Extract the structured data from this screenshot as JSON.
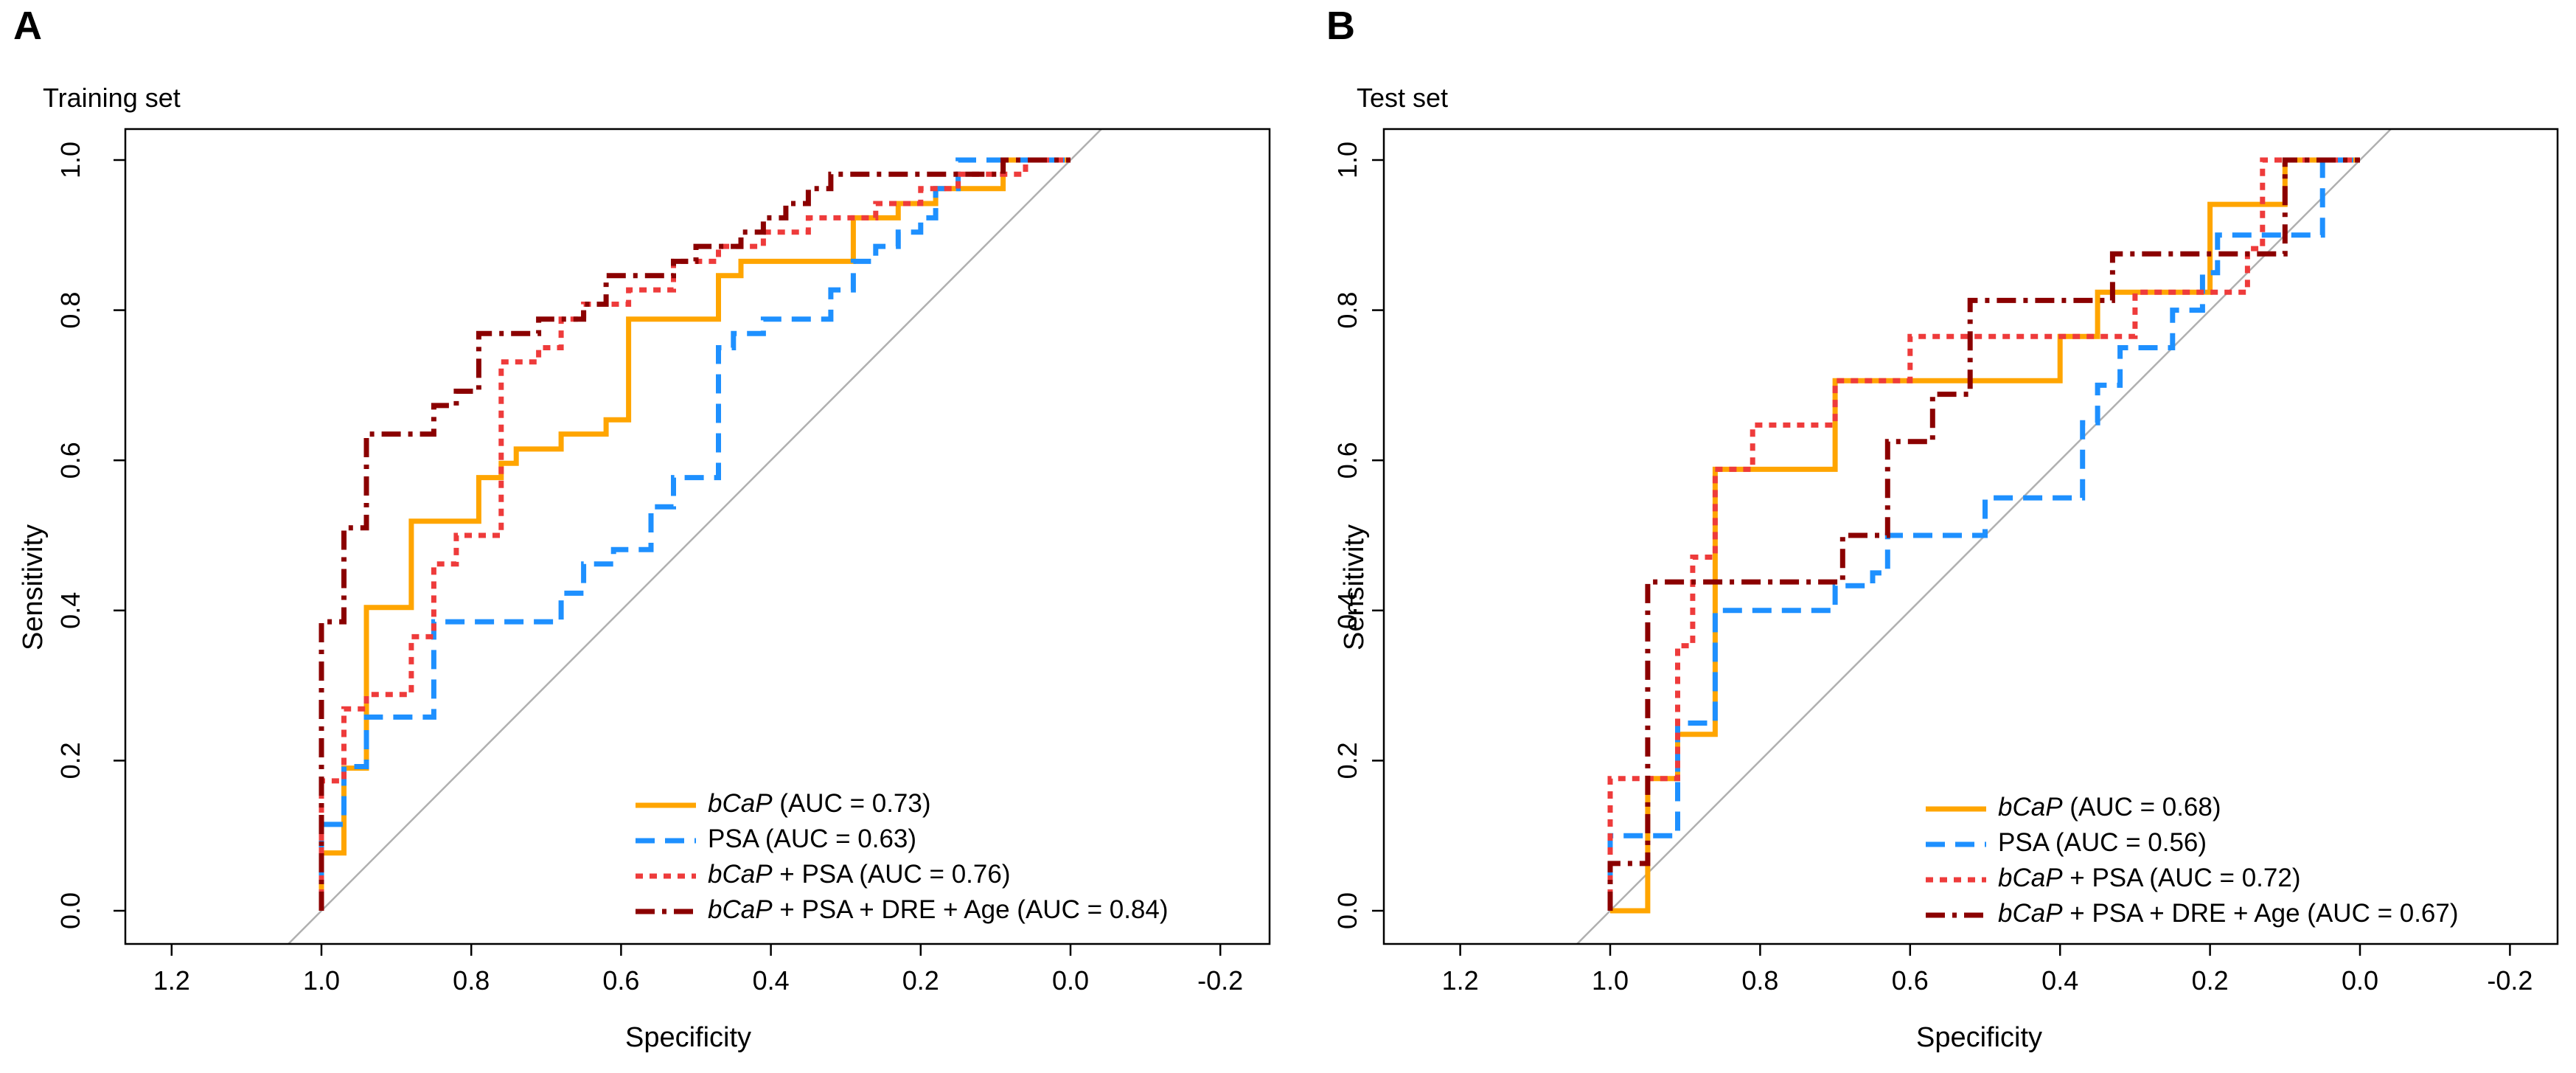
{
  "chart_data": [
    {
      "panel_letter": "A",
      "title": "Training set",
      "type": "line",
      "xlabel": "Specificity",
      "ylabel": "Sensitivity",
      "xlim": [
        1.25,
        -0.25
      ],
      "ylim": [
        0.0,
        1.0
      ],
      "x_ticks": [
        "1.2",
        "1.0",
        "0.8",
        "0.6",
        "0.4",
        "0.2",
        "0.0",
        "-0.2"
      ],
      "y_ticks": [
        "0.0",
        "0.2",
        "0.4",
        "0.6",
        "0.8",
        "1.0"
      ],
      "reference_line": "diagonal",
      "legend_position": "bottom-right",
      "series": [
        {
          "name": "bCaP",
          "legend_italic": "bCaP",
          "legend_rest": " (AUC = 0.73)",
          "auc": 0.73,
          "color": "#FFA500",
          "dash": "solid",
          "points": [
            [
              1.0,
              0.0
            ],
            [
              1.0,
              0.077
            ],
            [
              0.97,
              0.077
            ],
            [
              0.97,
              0.19
            ],
            [
              0.94,
              0.19
            ],
            [
              0.94,
              0.404
            ],
            [
              0.88,
              0.404
            ],
            [
              0.88,
              0.519
            ],
            [
              0.79,
              0.519
            ],
            [
              0.79,
              0.577
            ],
            [
              0.76,
              0.577
            ],
            [
              0.76,
              0.596
            ],
            [
              0.74,
              0.596
            ],
            [
              0.74,
              0.615
            ],
            [
              0.68,
              0.615
            ],
            [
              0.68,
              0.635
            ],
            [
              0.62,
              0.635
            ],
            [
              0.62,
              0.654
            ],
            [
              0.59,
              0.654
            ],
            [
              0.59,
              0.788
            ],
            [
              0.47,
              0.788
            ],
            [
              0.47,
              0.846
            ],
            [
              0.44,
              0.846
            ],
            [
              0.44,
              0.865
            ],
            [
              0.29,
              0.865
            ],
            [
              0.29,
              0.923
            ],
            [
              0.26,
              0.923
            ],
            [
              0.23,
              0.923
            ],
            [
              0.23,
              0.942
            ],
            [
              0.18,
              0.942
            ],
            [
              0.18,
              0.962
            ],
            [
              0.09,
              0.962
            ],
            [
              0.09,
              1.0
            ],
            [
              0.0,
              1.0
            ]
          ]
        },
        {
          "name": "PSA",
          "legend_italic": "",
          "legend_rest": "PSA (AUC = 0.63)",
          "auc": 0.63,
          "color": "#1E90FF",
          "dash": "dashed",
          "points": [
            [
              1.0,
              0.0
            ],
            [
              1.0,
              0.115
            ],
            [
              0.97,
              0.115
            ],
            [
              0.97,
              0.192
            ],
            [
              0.94,
              0.192
            ],
            [
              0.94,
              0.258
            ],
            [
              0.85,
              0.258
            ],
            [
              0.85,
              0.385
            ],
            [
              0.68,
              0.385
            ],
            [
              0.68,
              0.423
            ],
            [
              0.65,
              0.423
            ],
            [
              0.65,
              0.462
            ],
            [
              0.61,
              0.462
            ],
            [
              0.61,
              0.481
            ],
            [
              0.56,
              0.481
            ],
            [
              0.56,
              0.538
            ],
            [
              0.53,
              0.538
            ],
            [
              0.53,
              0.577
            ],
            [
              0.47,
              0.577
            ],
            [
              0.47,
              0.75
            ],
            [
              0.45,
              0.75
            ],
            [
              0.45,
              0.769
            ],
            [
              0.41,
              0.769
            ],
            [
              0.41,
              0.788
            ],
            [
              0.35,
              0.788
            ],
            [
              0.32,
              0.788
            ],
            [
              0.32,
              0.827
            ],
            [
              0.29,
              0.827
            ],
            [
              0.29,
              0.865
            ],
            [
              0.26,
              0.865
            ],
            [
              0.26,
              0.885
            ],
            [
              0.23,
              0.885
            ],
            [
              0.23,
              0.904
            ],
            [
              0.2,
              0.904
            ],
            [
              0.2,
              0.923
            ],
            [
              0.18,
              0.923
            ],
            [
              0.18,
              0.962
            ],
            [
              0.15,
              0.962
            ],
            [
              0.15,
              1.0
            ],
            [
              0.0,
              1.0
            ]
          ]
        },
        {
          "name": "bCaP + PSA",
          "legend_italic": "bCaP",
          "legend_rest": " + PSA (AUC = 0.76)",
          "auc": 0.76,
          "color": "#EE3B3B",
          "dash": "dotted",
          "points": [
            [
              1.0,
              0.0
            ],
            [
              1.0,
              0.173
            ],
            [
              0.97,
              0.173
            ],
            [
              0.97,
              0.269
            ],
            [
              0.94,
              0.269
            ],
            [
              0.94,
              0.288
            ],
            [
              0.88,
              0.288
            ],
            [
              0.88,
              0.365
            ],
            [
              0.85,
              0.365
            ],
            [
              0.85,
              0.462
            ],
            [
              0.82,
              0.462
            ],
            [
              0.82,
              0.5
            ],
            [
              0.76,
              0.5
            ],
            [
              0.76,
              0.731
            ],
            [
              0.71,
              0.731
            ],
            [
              0.71,
              0.75
            ],
            [
              0.68,
              0.75
            ],
            [
              0.68,
              0.788
            ],
            [
              0.65,
              0.788
            ],
            [
              0.65,
              0.808
            ],
            [
              0.59,
              0.808
            ],
            [
              0.59,
              0.827
            ],
            [
              0.53,
              0.827
            ],
            [
              0.53,
              0.865
            ],
            [
              0.47,
              0.865
            ],
            [
              0.47,
              0.885
            ],
            [
              0.41,
              0.885
            ],
            [
              0.41,
              0.904
            ],
            [
              0.35,
              0.904
            ],
            [
              0.35,
              0.923
            ],
            [
              0.26,
              0.923
            ],
            [
              0.26,
              0.942
            ],
            [
              0.2,
              0.942
            ],
            [
              0.2,
              0.962
            ],
            [
              0.15,
              0.962
            ],
            [
              0.15,
              0.981
            ],
            [
              0.06,
              0.981
            ],
            [
              0.06,
              1.0
            ],
            [
              0.0,
              1.0
            ]
          ]
        },
        {
          "name": "bCaP + PSA + DRE + Age",
          "legend_italic": "bCaP",
          "legend_rest": " + PSA + DRE + Age (AUC = 0.84)",
          "auc": 0.84,
          "color": "#8B0000",
          "dash": "dashdot",
          "points": [
            [
              1.0,
              0.0
            ],
            [
              1.0,
              0.385
            ],
            [
              0.97,
              0.385
            ],
            [
              0.97,
              0.51
            ],
            [
              0.94,
              0.51
            ],
            [
              0.94,
              0.635
            ],
            [
              0.85,
              0.635
            ],
            [
              0.85,
              0.673
            ],
            [
              0.82,
              0.673
            ],
            [
              0.82,
              0.692
            ],
            [
              0.79,
              0.692
            ],
            [
              0.79,
              0.769
            ],
            [
              0.71,
              0.769
            ],
            [
              0.71,
              0.788
            ],
            [
              0.65,
              0.788
            ],
            [
              0.65,
              0.808
            ],
            [
              0.62,
              0.808
            ],
            [
              0.62,
              0.846
            ],
            [
              0.53,
              0.846
            ],
            [
              0.53,
              0.865
            ],
            [
              0.5,
              0.865
            ],
            [
              0.5,
              0.885
            ],
            [
              0.44,
              0.885
            ],
            [
              0.44,
              0.904
            ],
            [
              0.41,
              0.904
            ],
            [
              0.41,
              0.923
            ],
            [
              0.38,
              0.923
            ],
            [
              0.38,
              0.942
            ],
            [
              0.35,
              0.942
            ],
            [
              0.35,
              0.962
            ],
            [
              0.32,
              0.962
            ],
            [
              0.32,
              0.981
            ],
            [
              0.09,
              0.981
            ],
            [
              0.09,
              1.0
            ],
            [
              0.0,
              1.0
            ]
          ]
        }
      ]
    },
    {
      "panel_letter": "B",
      "title": "Test set",
      "type": "line",
      "xlabel": "Specificity",
      "ylabel": "Sensitivity",
      "xlim": [
        1.25,
        -0.25
      ],
      "ylim": [
        0.0,
        1.0
      ],
      "x_ticks": [
        "1.2",
        "1.0",
        "0.8",
        "0.6",
        "0.4",
        "0.2",
        "0.0",
        "-0.2"
      ],
      "y_ticks": [
        "0.0",
        "0.2",
        "0.4",
        "0.6",
        "0.8",
        "1.0"
      ],
      "reference_line": "diagonal",
      "legend_position": "bottom-right",
      "series": [
        {
          "name": "bCaP",
          "legend_italic": "bCaP",
          "legend_rest": " (AUC = 0.68)",
          "auc": 0.68,
          "color": "#FFA500",
          "dash": "solid",
          "points": [
            [
              1.0,
              0.0
            ],
            [
              0.95,
              0.0
            ],
            [
              0.95,
              0.176
            ],
            [
              0.91,
              0.176
            ],
            [
              0.91,
              0.235
            ],
            [
              0.86,
              0.235
            ],
            [
              0.86,
              0.588
            ],
            [
              0.7,
              0.588
            ],
            [
              0.7,
              0.706
            ],
            [
              0.4,
              0.706
            ],
            [
              0.4,
              0.765
            ],
            [
              0.35,
              0.765
            ],
            [
              0.35,
              0.824
            ],
            [
              0.2,
              0.824
            ],
            [
              0.2,
              0.941
            ],
            [
              0.1,
              0.941
            ],
            [
              0.1,
              1.0
            ],
            [
              0.0,
              1.0
            ]
          ]
        },
        {
          "name": "PSA",
          "legend_italic": "",
          "legend_rest": "PSA (AUC = 0.56)",
          "auc": 0.56,
          "color": "#1E90FF",
          "dash": "dashed",
          "points": [
            [
              1.0,
              0.0
            ],
            [
              1.0,
              0.1
            ],
            [
              0.91,
              0.1
            ],
            [
              0.91,
              0.25
            ],
            [
              0.86,
              0.25
            ],
            [
              0.86,
              0.4
            ],
            [
              0.7,
              0.4
            ],
            [
              0.7,
              0.433
            ],
            [
              0.65,
              0.433
            ],
            [
              0.65,
              0.45
            ],
            [
              0.63,
              0.45
            ],
            [
              0.63,
              0.5
            ],
            [
              0.5,
              0.5
            ],
            [
              0.5,
              0.55
            ],
            [
              0.37,
              0.55
            ],
            [
              0.37,
              0.65
            ],
            [
              0.35,
              0.65
            ],
            [
              0.35,
              0.7
            ],
            [
              0.32,
              0.7
            ],
            [
              0.32,
              0.75
            ],
            [
              0.25,
              0.75
            ],
            [
              0.25,
              0.8
            ],
            [
              0.21,
              0.8
            ],
            [
              0.21,
              0.85
            ],
            [
              0.19,
              0.85
            ],
            [
              0.19,
              0.9
            ],
            [
              0.05,
              0.9
            ],
            [
              0.05,
              1.0
            ],
            [
              0.0,
              1.0
            ]
          ]
        },
        {
          "name": "bCaP + PSA",
          "legend_italic": "bCaP",
          "legend_rest": " + PSA (AUC = 0.72)",
          "auc": 0.72,
          "color": "#EE3B3B",
          "dash": "dotted",
          "points": [
            [
              1.0,
              0.0
            ],
            [
              1.0,
              0.176
            ],
            [
              0.91,
              0.176
            ],
            [
              0.91,
              0.353
            ],
            [
              0.89,
              0.353
            ],
            [
              0.89,
              0.471
            ],
            [
              0.86,
              0.471
            ],
            [
              0.86,
              0.588
            ],
            [
              0.81,
              0.588
            ],
            [
              0.81,
              0.647
            ],
            [
              0.7,
              0.647
            ],
            [
              0.7,
              0.706
            ],
            [
              0.6,
              0.706
            ],
            [
              0.6,
              0.765
            ],
            [
              0.3,
              0.765
            ],
            [
              0.3,
              0.824
            ],
            [
              0.15,
              0.824
            ],
            [
              0.15,
              0.882
            ],
            [
              0.13,
              0.882
            ],
            [
              0.13,
              1.0
            ],
            [
              0.0,
              1.0
            ]
          ]
        },
        {
          "name": "bCaP + PSA + DRE + Age",
          "legend_italic": "bCaP",
          "legend_rest": " + PSA + DRE + Age (AUC = 0.67)",
          "auc": 0.67,
          "color": "#8B0000",
          "dash": "dashdot",
          "points": [
            [
              1.0,
              0.0
            ],
            [
              1.0,
              0.063
            ],
            [
              0.95,
              0.063
            ],
            [
              0.95,
              0.438
            ],
            [
              0.69,
              0.438
            ],
            [
              0.69,
              0.5
            ],
            [
              0.63,
              0.5
            ],
            [
              0.63,
              0.625
            ],
            [
              0.57,
              0.625
            ],
            [
              0.57,
              0.688
            ],
            [
              0.52,
              0.688
            ],
            [
              0.52,
              0.813
            ],
            [
              0.33,
              0.813
            ],
            [
              0.33,
              0.875
            ],
            [
              0.1,
              0.875
            ],
            [
              0.1,
              1.0
            ],
            [
              0.0,
              1.0
            ]
          ]
        }
      ]
    }
  ]
}
